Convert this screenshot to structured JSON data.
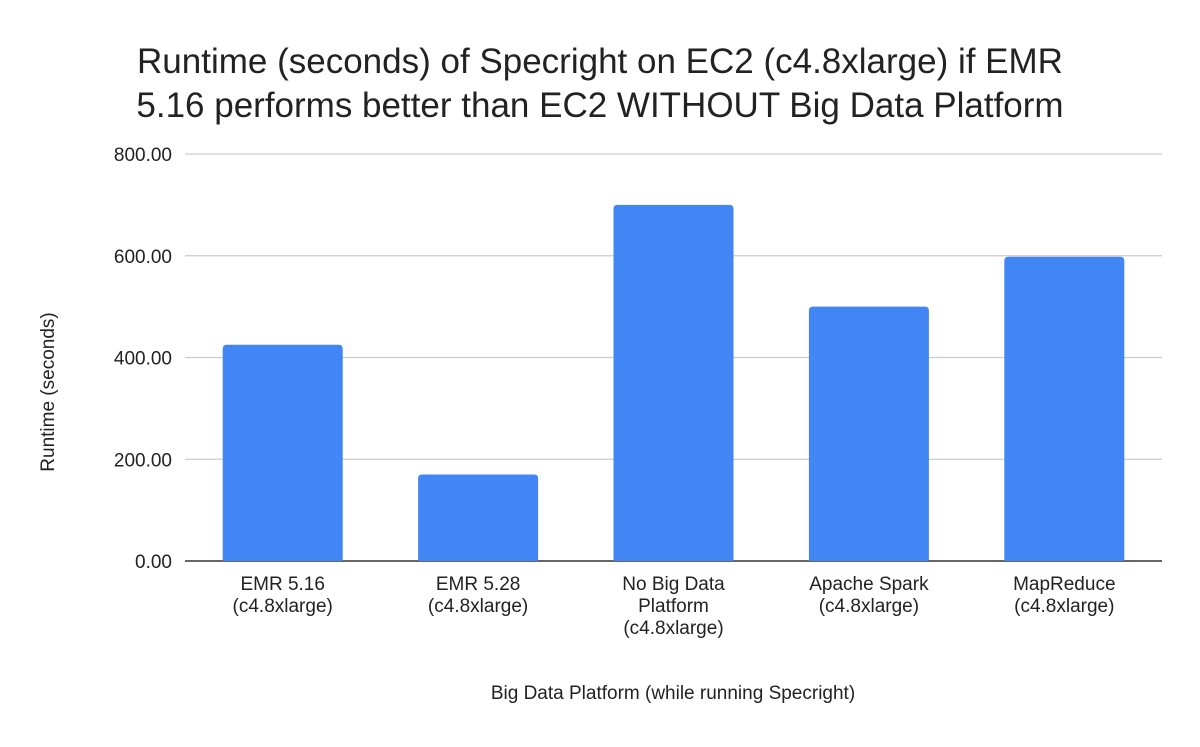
{
  "chart_data": {
    "type": "bar",
    "title_lines": [
      "Runtime (seconds) of Specright on EC2 (c4.8xlarge) if EMR",
      "5.16 performs better than EC2 WITHOUT Big Data Platform"
    ],
    "xlabel": "Big Data Platform (while running Specright)",
    "ylabel": "Runtime (seconds)",
    "ylim": [
      0,
      800
    ],
    "yticks": [
      "0.00",
      "200.00",
      "400.00",
      "600.00",
      "800.00"
    ],
    "ytick_values": [
      0,
      200,
      400,
      600,
      800
    ],
    "grid": true,
    "categories": [
      [
        "EMR 5.16",
        "(c4.8xlarge)"
      ],
      [
        "EMR 5.28",
        "(c4.8xlarge)"
      ],
      [
        "No Big Data",
        "Platform",
        "(c4.8xlarge)"
      ],
      [
        "Apache Spark",
        "(c4.8xlarge)"
      ],
      [
        "MapReduce",
        "(c4.8xlarge)"
      ]
    ],
    "values": [
      425,
      170,
      700,
      500,
      598
    ],
    "bar_color": "#4285f4",
    "grid_color": "#cccccc"
  }
}
